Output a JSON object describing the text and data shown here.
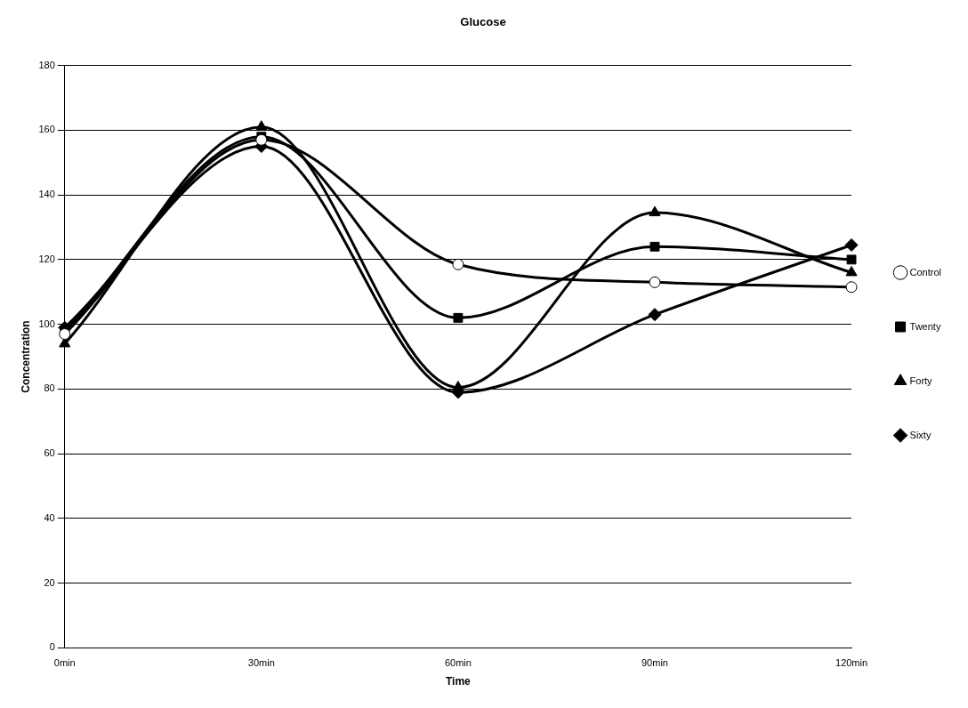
{
  "chart_data": {
    "type": "line",
    "title": "Glucose",
    "xlabel": "Time",
    "ylabel": "Concentration",
    "categories": [
      "0min",
      "30min",
      "60min",
      "90min",
      "120min"
    ],
    "series": [
      {
        "name": "Control",
        "color": "#000000",
        "marker": "circle",
        "values": [
          97,
          157,
          118.5,
          113,
          111.5
        ]
      },
      {
        "name": "Twenty",
        "color": "#000000",
        "marker": "square",
        "values": [
          98,
          158,
          102,
          124,
          120
        ]
      },
      {
        "name": "Forty",
        "color": "#000000",
        "marker": "triangle",
        "values": [
          94,
          161,
          80.5,
          134.5,
          116
        ]
      },
      {
        "name": "Sixty",
        "color": "#000000",
        "marker": "diamond",
        "values": [
          99,
          155,
          79,
          103,
          124.5
        ]
      }
    ],
    "ylim": [
      0,
      180
    ],
    "yticks": [
      0,
      20,
      40,
      60,
      80,
      100,
      120,
      140,
      160,
      180
    ],
    "grid": "y",
    "legend": "right",
    "line_style": "solid"
  }
}
